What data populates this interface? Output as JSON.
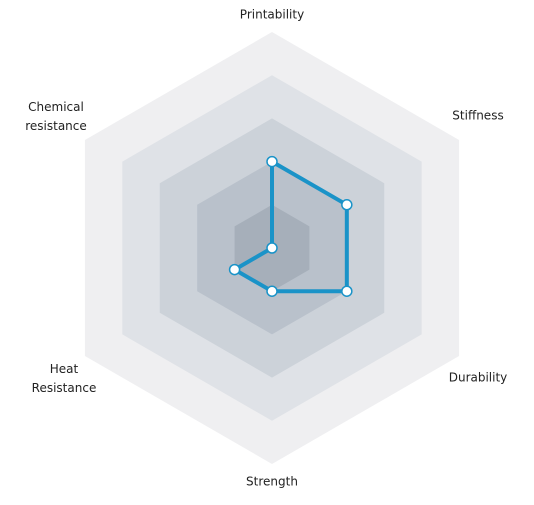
{
  "chart_data": {
    "type": "radar",
    "categories": [
      [
        "Printability"
      ],
      [
        "Stiffness"
      ],
      [
        "Durability"
      ],
      [
        "Strength"
      ],
      [
        "Heat",
        "Resistance"
      ],
      [
        "Chemical",
        "resistance"
      ]
    ],
    "values": [
      2,
      2,
      2,
      1,
      1,
      0
    ],
    "rlim": [
      0,
      5
    ],
    "rticks": [
      1,
      2,
      3,
      4,
      5
    ],
    "grid": true,
    "ring_colors": [
      "#a6afba",
      "#b9c1cb",
      "#ccd2d9",
      "#dfe2e7",
      "#efeff1"
    ],
    "color": "#1a93c8"
  }
}
